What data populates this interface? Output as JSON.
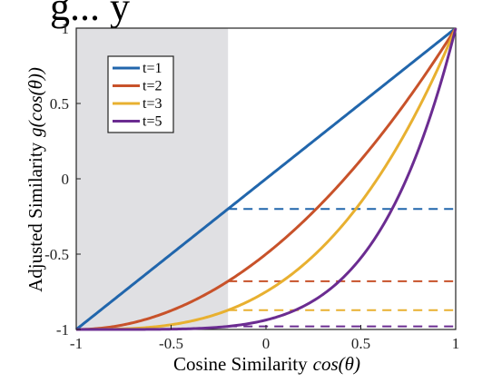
{
  "title_partial": "g... y",
  "chart_data": {
    "type": "line",
    "xlabel": "Cosine Similarity",
    "xlabel_math": "cos(θ)",
    "ylabel": "Adjusted Similarity",
    "ylabel_math": "g(cos(θ))",
    "xlim": [
      -1,
      1
    ],
    "ylim": [
      -1,
      1
    ],
    "xticks": [
      -1,
      -0.5,
      0,
      0.5,
      1
    ],
    "xtick_labels": [
      "-1",
      "-0.5",
      "0",
      "0.5",
      "1"
    ],
    "yticks": [
      -1,
      -0.5,
      0,
      0.5,
      1
    ],
    "ytick_labels": [
      "-1",
      "-0.5",
      "0",
      "0.5",
      "1"
    ],
    "grid": false,
    "legend_position": "top-left",
    "shaded_region": {
      "x_from": -1,
      "x_to": -0.2,
      "color": "#e0e0e3"
    },
    "threshold_x": -0.2,
    "series": [
      {
        "name": "t=1",
        "t": 1,
        "color": "#2166ac",
        "x": [
          -1,
          -0.5,
          -0.2,
          0,
          0.5,
          1
        ],
        "y": [
          -1,
          -0.5,
          -0.2,
          0,
          0.5,
          1
        ],
        "dashed_level": -0.2
      },
      {
        "name": "t=2",
        "t": 2,
        "color": "#c8522a",
        "x": [
          -1,
          -0.5,
          -0.2,
          0,
          0.5,
          1
        ],
        "y": [
          -1,
          -0.875,
          -0.68,
          -0.5,
          0.125,
          1
        ],
        "dashed_level": -0.68
      },
      {
        "name": "t=3",
        "t": 3,
        "color": "#e8b030",
        "x": [
          -1,
          -0.5,
          -0.2,
          0,
          0.5,
          1
        ],
        "y": [
          -1,
          -0.969,
          -0.872,
          -0.75,
          -0.156,
          1
        ],
        "dashed_level": -0.872
      },
      {
        "name": "t=5",
        "t": 5,
        "color": "#6b2c91",
        "x": [
          -1,
          -0.5,
          -0.2,
          0,
          0.5,
          1
        ],
        "y": [
          -1,
          -0.998,
          -0.98,
          -0.938,
          -0.526,
          1
        ],
        "dashed_level": -0.98
      }
    ]
  }
}
